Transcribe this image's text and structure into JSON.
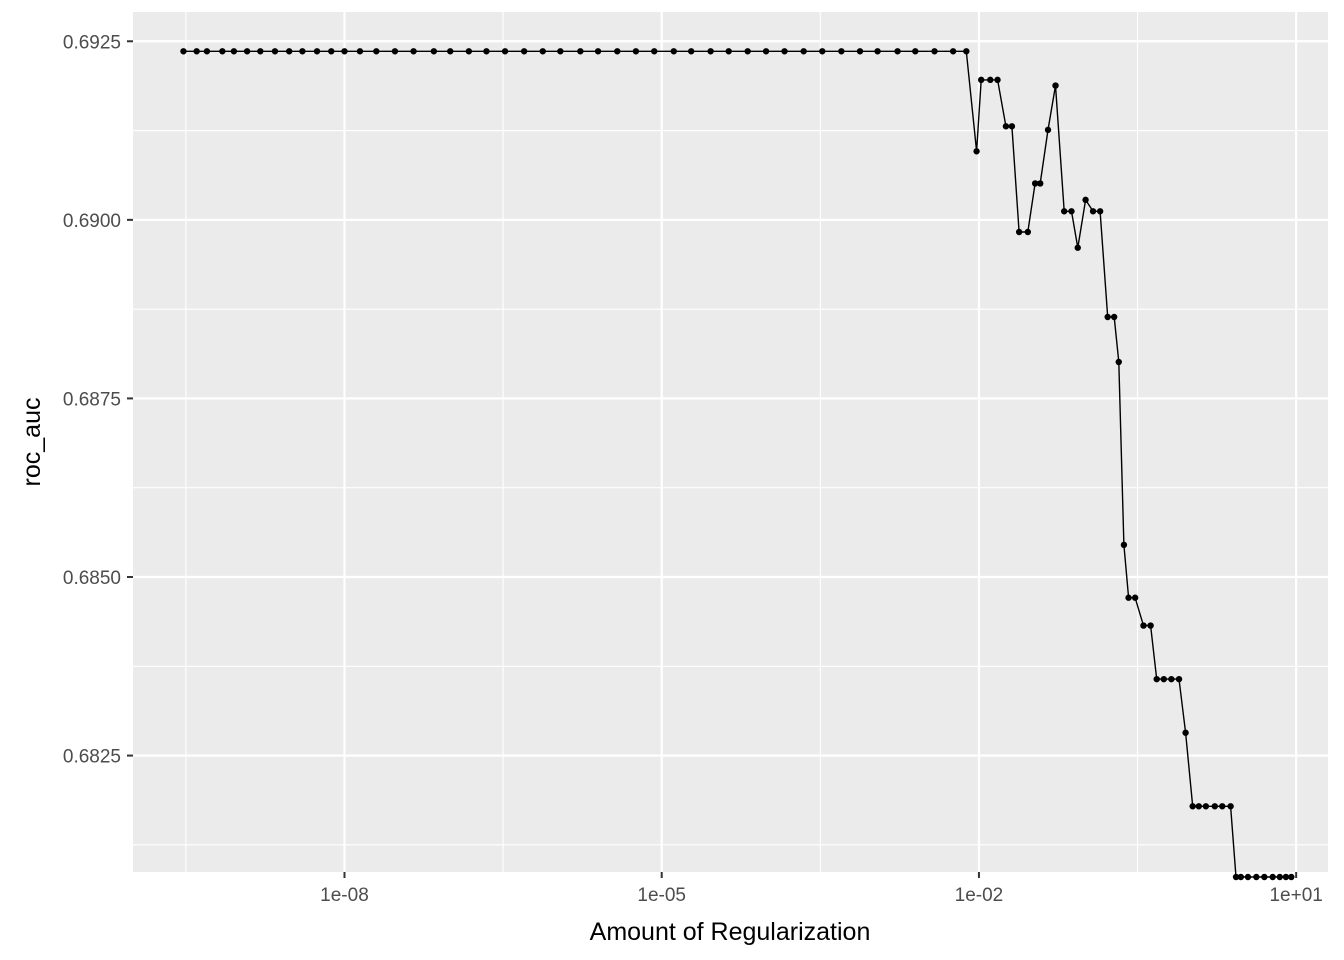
{
  "chart_data": {
    "type": "line",
    "title": "",
    "xlabel": "Amount of Regularization",
    "ylabel": "roc_auc",
    "x_scale": "log10",
    "xlim": [
      1e-10,
      20
    ],
    "ylim": [
      0.68087,
      0.69291
    ],
    "x_ticks": [
      1e-08,
      1e-05,
      0.01,
      10
    ],
    "x_tick_labels": [
      "1e-08",
      "1e-05",
      "1e-02",
      "1e+01"
    ],
    "y_ticks": [
      0.6825,
      0.685,
      0.6875,
      0.69,
      0.6925
    ],
    "y_tick_labels": [
      "0.6825",
      "0.6850",
      "0.6875",
      "0.6900",
      "0.6925"
    ],
    "grid": true,
    "legend": "none",
    "colors": {
      "panel": "#ebebeb",
      "grid": "#ffffff",
      "line": "#000000"
    },
    "series": [
      {
        "x": [
          3e-10,
          4e-10,
          5e-10,
          7e-10,
          9e-10,
          1.2e-09,
          1.6e-09,
          2.2e-09,
          3e-09,
          4e-09,
          5.5e-09,
          7.5e-09,
          1e-08,
          1.4e-08,
          2e-08,
          3e-08,
          4.5e-08,
          7e-08,
          1e-07,
          1.5e-07,
          2.2e-07,
          3.3e-07,
          5e-07,
          7.5e-07,
          1.1e-06,
          1.7e-06,
          2.5e-06,
          3.8e-06,
          5.7e-06,
          8.5e-06,
          1.3e-05,
          1.9e-05,
          2.9e-05,
          4.3e-05,
          6.5e-05,
          9.7e-05,
          0.000145,
          0.00022,
          0.00033,
          0.0005,
          0.00075,
          0.0011,
          0.0017,
          0.0025,
          0.0038,
          0.0057,
          0.0076,
          0.0095,
          0.0105,
          0.0128,
          0.015,
          0.018,
          0.0205,
          0.024,
          0.029,
          0.034,
          0.038,
          0.045,
          0.053,
          0.064,
          0.075,
          0.086,
          0.102,
          0.12,
          0.14,
          0.165,
          0.19,
          0.21,
          0.235,
          0.26,
          0.3,
          0.36,
          0.42,
          0.48,
          0.56,
          0.66,
          0.78,
          0.9,
          1.05,
          1.2,
          1.4,
          1.7,
          2.0,
          2.4,
          2.7,
          3.0,
          3.5,
          4.2,
          5.0,
          6.0,
          7.0,
          8.0,
          9.0
        ],
        "y": [
          0.69236,
          0.69236,
          0.69236,
          0.69236,
          0.69236,
          0.69236,
          0.69236,
          0.69236,
          0.69236,
          0.69236,
          0.69236,
          0.69236,
          0.69236,
          0.69236,
          0.69236,
          0.69236,
          0.69236,
          0.69236,
          0.69236,
          0.69236,
          0.69236,
          0.69236,
          0.69236,
          0.69236,
          0.69236,
          0.69236,
          0.69236,
          0.69236,
          0.69236,
          0.69236,
          0.69236,
          0.69236,
          0.69236,
          0.69236,
          0.69236,
          0.69236,
          0.69236,
          0.69236,
          0.69236,
          0.69236,
          0.69236,
          0.69236,
          0.69236,
          0.69236,
          0.69236,
          0.69236,
          0.69236,
          0.69096,
          0.69196,
          0.69196,
          0.69196,
          0.69131,
          0.69131,
          0.68983,
          0.68983,
          0.69051,
          0.69051,
          0.69126,
          0.69188,
          0.69012,
          0.69012,
          0.68961,
          0.69028,
          0.69012,
          0.69012,
          0.68864,
          0.68864,
          0.68801,
          0.68545,
          0.68471,
          0.68471,
          0.68432,
          0.68432,
          0.68357,
          0.68357,
          0.68357,
          0.68357,
          0.68282,
          0.68179,
          0.68179,
          0.68179,
          0.68179,
          0.68179,
          0.68179,
          0.6808,
          0.6808,
          0.6808,
          0.6808,
          0.6808,
          0.6808,
          0.6808,
          0.6808,
          0.6808
        ]
      }
    ]
  }
}
